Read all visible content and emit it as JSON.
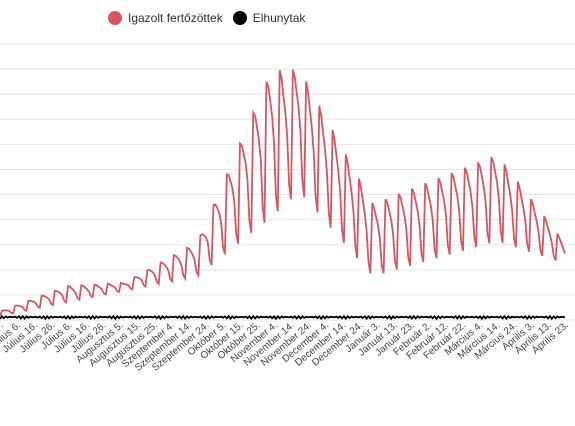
{
  "legend": {
    "series_1": "Igazolt fertőzöttek",
    "series_2": "Elhunytak"
  },
  "colors": {
    "cases": "#d6565f",
    "deaths": "#000000",
    "grid": "#e3e3e3",
    "axis_text": "#444444"
  },
  "chart_data": {
    "type": "line",
    "legend_position": "top",
    "grid": true,
    "categories_visible": [
      "Június 27.",
      "Július 6.",
      "Július 16.",
      "Július 26.",
      "Július 6.",
      "Július 16.",
      "Július 26.",
      "Augusztus 5.",
      "Augusztus 15.",
      "Augusztus 25.",
      "Szeptember 4.",
      "Szeptember 14.",
      "Szeptember 24.",
      "Október 5.",
      "Október 15.",
      "Október 25.",
      "November 4.",
      "November 14.",
      "November 24.",
      "December 4.",
      "December 14.",
      "December 24.",
      "Január 3.",
      "Január 13.",
      "Január 23.",
      "Február 2.",
      "Február 12.",
      "Február 22.",
      "Március 4.",
      "Március 14.",
      "Március 24.",
      "Április 3.",
      "Április 13.",
      "Április 23."
    ],
    "ylim": [
      0,
      11000
    ],
    "series": [
      {
        "name": "Igazolt fertőzöttek",
        "x_index_range": [
          0,
          300
        ],
        "values_by_segment_peaks": {
          "early_low": [
            120,
            350
          ],
          "summer_rise": [
            600,
            1400
          ],
          "august_plateau": [
            1100,
            1500
          ],
          "september_rise": [
            1500,
            3200
          ],
          "october_peak": [
            3000,
            10300
          ],
          "november_peak": [
            4200,
            10300
          ],
          "january_dip": [
            1200,
            4800
          ],
          "march_peak": [
            2500,
            6800
          ],
          "april_end": [
            2100,
            3100
          ]
        }
      },
      {
        "name": "Elhunytak",
        "values_by_segment_peaks": {
          "baseline": [
            0,
            150
          ]
        }
      }
    ]
  }
}
